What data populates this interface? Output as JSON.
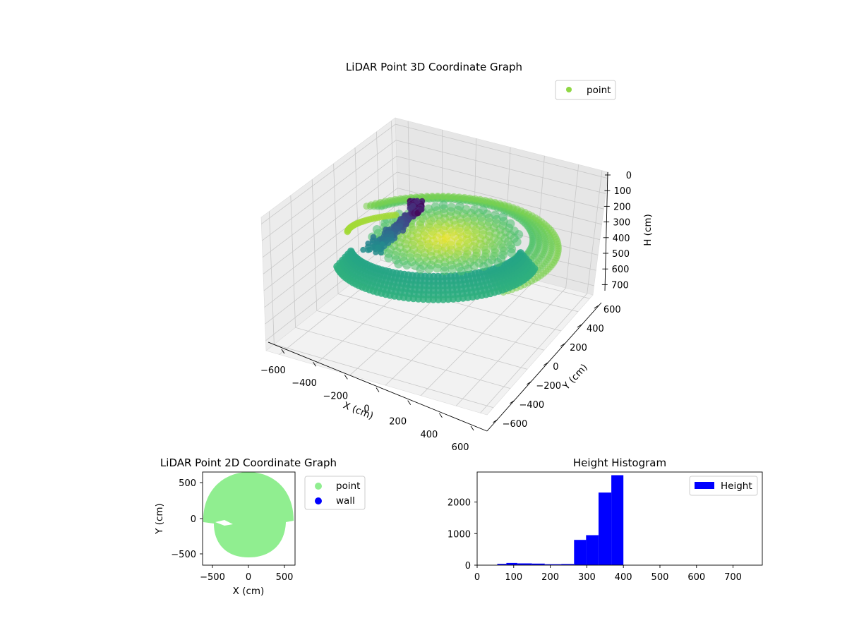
{
  "chart_data": [
    {
      "type": "scatter",
      "projection": "3d",
      "title": "LiDAR Point 3D Coordinate Graph",
      "xlabel": "X (cm)",
      "ylabel": "Y (cm)",
      "zlabel": "H (cm)",
      "xlim": [
        -650,
        650
      ],
      "ylim": [
        -650,
        650
      ],
      "zlim": [
        750,
        0
      ],
      "z_inverted": true,
      "xticks": [
        "−600",
        "−400",
        "−200",
        "0",
        "200",
        "400",
        "600"
      ],
      "yticks": [
        "−600",
        "−400",
        "−200",
        "0",
        "200",
        "400",
        "600"
      ],
      "zticks": [
        "0",
        "100",
        "200",
        "300",
        "400",
        "500",
        "600",
        "700"
      ],
      "colormap": "viridis",
      "grid": true,
      "legend": {
        "position": "top-right",
        "entries": [
          {
            "label": "point",
            "color": "#8fd744"
          }
        ]
      },
      "series": [
        {
          "name": "point"
        }
      ]
    },
    {
      "type": "scatter",
      "title": "LiDAR Point 2D Coordinate Graph",
      "xlabel": "X (cm)",
      "ylabel": "Y (cm)",
      "xlim": [
        -650,
        650
      ],
      "ylim": [
        -650,
        650
      ],
      "xticks": [
        "−500",
        "0",
        "500"
      ],
      "yticks": [
        "500",
        "0",
        "−500"
      ],
      "legend": {
        "position": "outside-right",
        "entries": [
          {
            "label": "point",
            "color": "#90ee90"
          },
          {
            "label": "wall",
            "color": "#0000ff"
          }
        ]
      },
      "series": [
        {
          "name": "point",
          "color": "#90ee90"
        },
        {
          "name": "wall",
          "color": "#0000ff"
        }
      ]
    },
    {
      "type": "bar",
      "histogram": true,
      "title": "Height Histogram",
      "xlim": [
        0,
        780
      ],
      "ylim": [
        0,
        2950
      ],
      "xticks": [
        "0",
        "100",
        "200",
        "300",
        "400",
        "500",
        "600",
        "700"
      ],
      "yticks": [
        "0",
        "1000",
        "2000"
      ],
      "color": "#0000ff",
      "legend": {
        "position": "top-right",
        "entries": [
          {
            "label": "Height",
            "color": "#0000ff"
          }
        ]
      },
      "bins": [
        {
          "x0": 55,
          "x1": 80,
          "count": 40
        },
        {
          "x0": 80,
          "x1": 110,
          "count": 70
        },
        {
          "x0": 110,
          "x1": 150,
          "count": 55
        },
        {
          "x0": 150,
          "x1": 185,
          "count": 50
        },
        {
          "x0": 185,
          "x1": 230,
          "count": 30
        },
        {
          "x0": 230,
          "x1": 265,
          "count": 35
        },
        {
          "x0": 265,
          "x1": 298,
          "count": 800
        },
        {
          "x0": 298,
          "x1": 332,
          "count": 950
        },
        {
          "x0": 332,
          "x1": 367,
          "count": 2300
        },
        {
          "x0": 367,
          "x1": 400,
          "count": 2850
        }
      ]
    }
  ]
}
